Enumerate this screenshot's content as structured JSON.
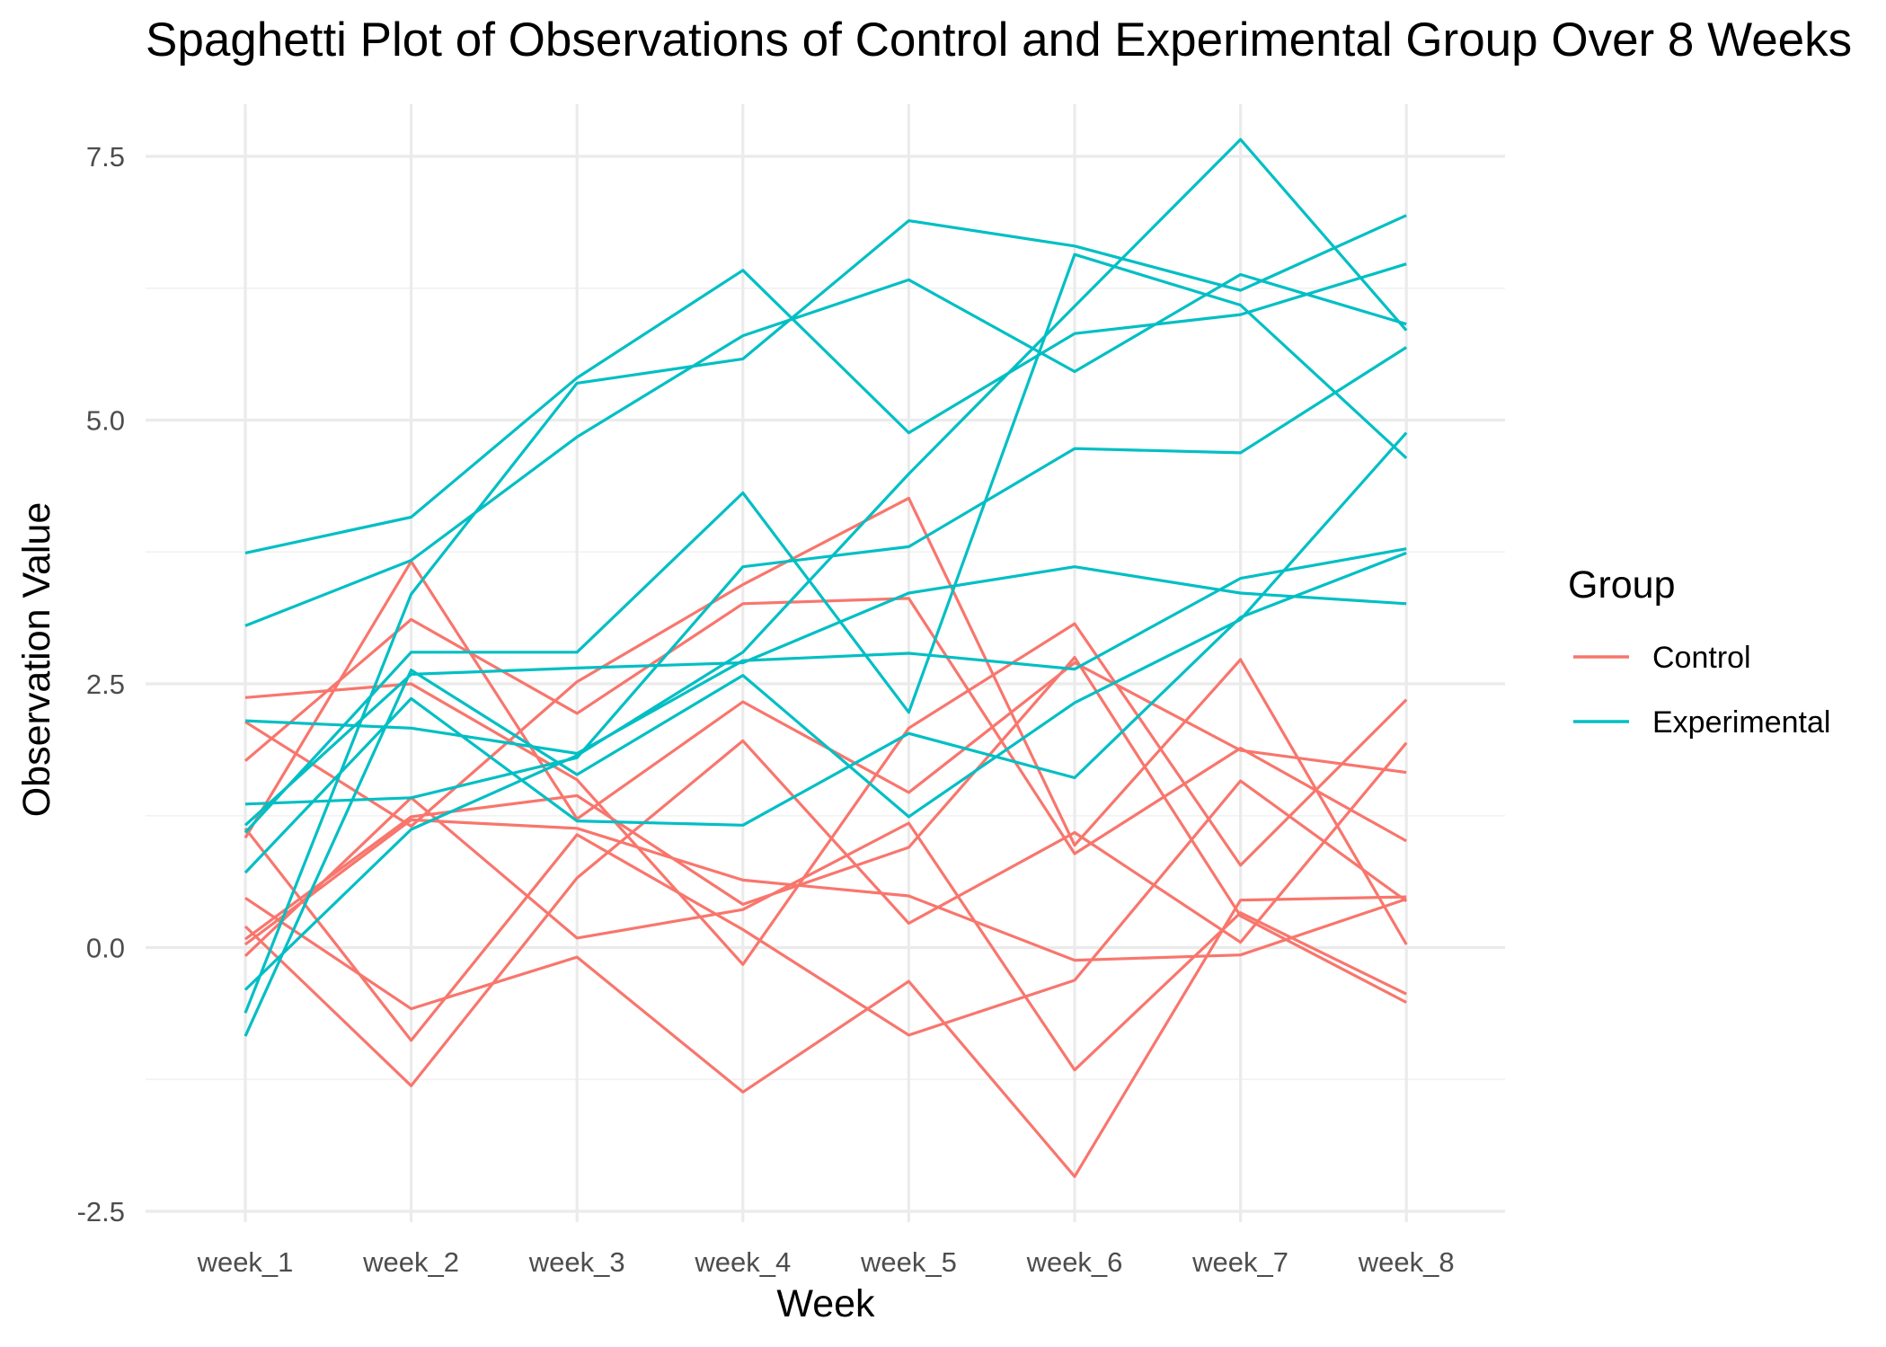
{
  "chart_data": {
    "type": "line",
    "title": "Spaghetti Plot of Observations of Control and Experimental Group Over 8 Weeks",
    "xlabel": "Week",
    "ylabel": "Observation Value",
    "categories": [
      "week_1",
      "week_2",
      "week_3",
      "week_4",
      "week_5",
      "week_6",
      "week_7",
      "week_8"
    ],
    "ylim": [
      -2.5,
      8.0
    ],
    "yticks": [
      -2.5,
      0.0,
      2.5,
      5.0,
      7.5
    ],
    "ytick_labels": [
      "-2.5",
      "0.0",
      "2.5",
      "5.0",
      "7.5"
    ],
    "grid": true,
    "legend": {
      "title": "Group",
      "placement": "right",
      "entries": [
        {
          "name": "Control",
          "color": "#f8766d"
        },
        {
          "name": "Experimental",
          "color": "#00bfc4"
        }
      ]
    },
    "series": [
      {
        "group": "Control",
        "values": [
          0.2,
          -1.31,
          0.66,
          1.96,
          0.23,
          1.09,
          0.05,
          1.94
        ]
      },
      {
        "group": "Control",
        "values": [
          1.13,
          -0.88,
          1.07,
          0.17,
          -0.83,
          -0.31,
          1.58,
          0.44
        ]
      },
      {
        "group": "Control",
        "values": [
          1.77,
          3.11,
          2.22,
          3.26,
          3.31,
          0.89,
          1.89,
          1.01
        ]
      },
      {
        "group": "Control",
        "values": [
          1.04,
          3.66,
          1.22,
          2.33,
          1.47,
          2.7,
          1.87,
          1.66
        ]
      },
      {
        "group": "Control",
        "values": [
          0.47,
          -0.58,
          -0.09,
          -1.37,
          -0.32,
          -2.17,
          0.45,
          0.48
        ]
      },
      {
        "group": "Control",
        "values": [
          2.37,
          2.5,
          1.59,
          -0.16,
          2.08,
          3.07,
          0.78,
          2.35
        ]
      },
      {
        "group": "Control",
        "values": [
          0.03,
          1.21,
          1.13,
          0.64,
          0.49,
          -0.12,
          -0.07,
          0.46
        ]
      },
      {
        "group": "Control",
        "values": [
          -0.08,
          1.42,
          0.09,
          0.36,
          1.18,
          -1.16,
          0.33,
          -0.44
        ]
      },
      {
        "group": "Control",
        "values": [
          0.08,
          1.24,
          1.44,
          0.41,
          0.95,
          2.75,
          0.3,
          -0.52
        ]
      },
      {
        "group": "Control",
        "values": [
          2.14,
          1.15,
          2.52,
          3.44,
          4.26,
          0.97,
          2.73,
          0.03
        ]
      },
      {
        "group": "Experimental",
        "values": [
          3.05,
          3.67,
          4.84,
          5.8,
          6.33,
          5.46,
          6.38,
          5.91
        ]
      },
      {
        "group": "Experimental",
        "values": [
          -0.84,
          2.63,
          1.64,
          2.58,
          1.24,
          2.32,
          3.11,
          4.88
        ]
      },
      {
        "group": "Experimental",
        "values": [
          2.15,
          2.08,
          1.84,
          2.72,
          2.79,
          2.64,
          3.5,
          3.78
        ]
      },
      {
        "group": "Experimental",
        "values": [
          -0.62,
          3.35,
          5.35,
          5.58,
          6.89,
          6.65,
          6.23,
          6.94
        ]
      },
      {
        "group": "Experimental",
        "values": [
          1.09,
          2.8,
          2.8,
          4.31,
          2.23,
          6.57,
          6.09,
          4.64
        ]
      },
      {
        "group": "Experimental",
        "values": [
          0.71,
          2.36,
          1.2,
          1.16,
          2.03,
          1.61,
          3.13,
          3.74
        ]
      },
      {
        "group": "Experimental",
        "values": [
          3.74,
          4.08,
          5.4,
          6.42,
          4.88,
          5.82,
          6.0,
          6.48
        ]
      },
      {
        "group": "Experimental",
        "values": [
          1.36,
          1.42,
          1.8,
          3.61,
          3.8,
          4.73,
          4.69,
          5.69
        ]
      },
      {
        "group": "Experimental",
        "values": [
          1.16,
          2.59,
          2.65,
          2.7,
          3.36,
          3.61,
          3.36,
          3.26
        ]
      },
      {
        "group": "Experimental",
        "values": [
          -0.4,
          1.12,
          1.82,
          2.8,
          4.49,
          6.08,
          7.66,
          5.85
        ]
      }
    ]
  }
}
